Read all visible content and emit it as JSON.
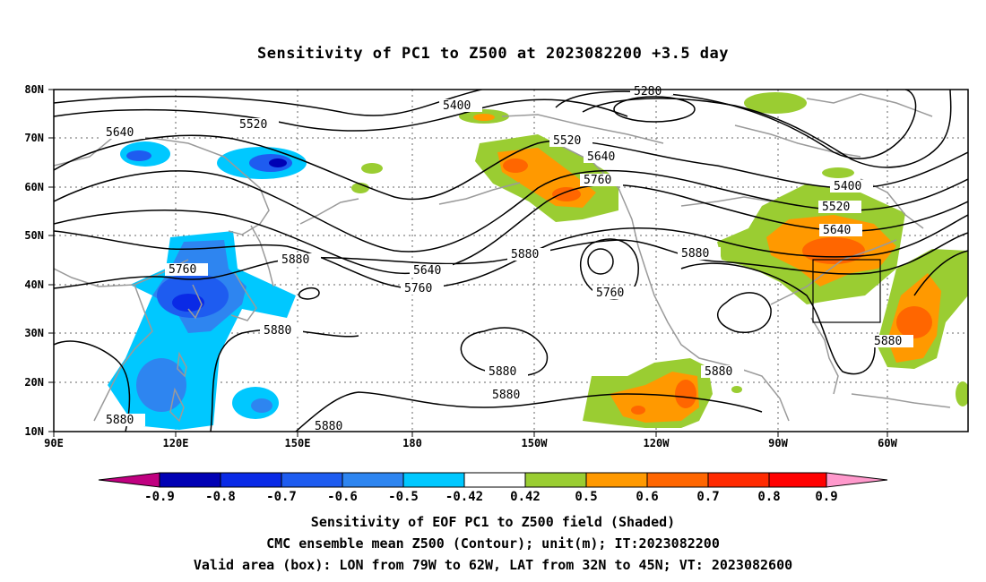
{
  "title": "Sensitivity of PC1 to Z500 at 2023082200 +3.5 day",
  "lat_labels": [
    "80N",
    "70N",
    "60N",
    "50N",
    "40N",
    "30N",
    "20N",
    "10N"
  ],
  "lon_labels": [
    "90E",
    "120E",
    "150E",
    "180",
    "150W",
    "120W",
    "90W",
    "60W"
  ],
  "contour_labels": [
    "5280",
    "5400",
    "5520",
    "5640",
    "5760",
    "5880"
  ],
  "colorbar": {
    "labels": [
      "-0.9",
      "-0.8",
      "-0.7",
      "-0.6",
      "-0.5",
      "-0.42",
      "0.42",
      "0.5",
      "0.6",
      "0.7",
      "0.8",
      "0.9"
    ],
    "colors": [
      "#c00080",
      "#0000b4",
      "#0a2ae6",
      "#1e5cf0",
      "#2e85f0",
      "#00c8ff",
      "#ffffff",
      "#9acd32",
      "#ff9900",
      "#ff6600",
      "#ff2a00",
      "#ff0000",
      "#ff99cc"
    ]
  },
  "captions": [
    "Sensitivity of EOF PC1 to Z500 field (Shaded)",
    "CMC ensemble mean Z500 (Contour); unit(m); IT:2023082200",
    "Valid area (box): LON from 79W to 62W, LAT from 32N to 45N; VT: 2023082600"
  ],
  "valid_box": {
    "lon_min": -79,
    "lon_max": -62,
    "lat_min": 32,
    "lat_max": 45
  }
}
